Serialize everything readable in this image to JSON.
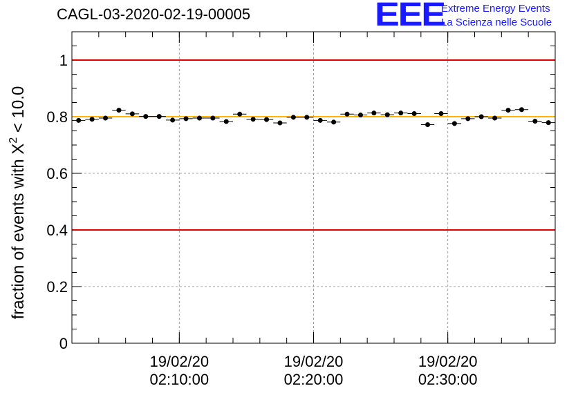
{
  "run_title": "CAGL-03-2020-02-19-00005",
  "logo": {
    "mark": "EEE",
    "line1": "Extreme Energy Events",
    "line2": "La Scienza nelle Scuole",
    "color": "#1a1aff"
  },
  "chart_data": {
    "type": "scatter",
    "title": "CAGL-03-2020-02-19-00005",
    "ylabel_main": "fraction of events with X",
    "ylabel_sup": "2",
    "ylabel_tail": " < 10.0",
    "xlabel": "",
    "ylim": [
      0,
      1.1
    ],
    "yticks": [
      "0",
      "0.2",
      "0.4",
      "0.6",
      "0.8",
      "1"
    ],
    "xtick_labels": [
      {
        "date": "19/02/20",
        "time": "02:10:00"
      },
      {
        "date": "19/02/20",
        "time": "02:20:00"
      },
      {
        "date": "19/02/20",
        "time": "02:30:00"
      }
    ],
    "grid": true,
    "reference_lines": [
      {
        "y": 1.0,
        "color": "#e00000"
      },
      {
        "y": 0.4,
        "color": "#e00000"
      },
      {
        "y": 0.8,
        "color": "#ffb400"
      }
    ],
    "series": [
      {
        "marker_color": "#000000",
        "points": [
          0.787,
          0.791,
          0.795,
          0.823,
          0.81,
          0.801,
          0.801,
          0.788,
          0.793,
          0.795,
          0.795,
          0.783,
          0.809,
          0.791,
          0.79,
          0.778,
          0.798,
          0.798,
          0.787,
          0.781,
          0.809,
          0.806,
          0.813,
          0.807,
          0.813,
          0.811,
          0.772,
          0.811,
          0.776,
          0.793,
          0.8,
          0.795,
          0.823,
          0.825,
          0.784,
          0.779
        ],
        "error_half": 0.006
      }
    ]
  }
}
